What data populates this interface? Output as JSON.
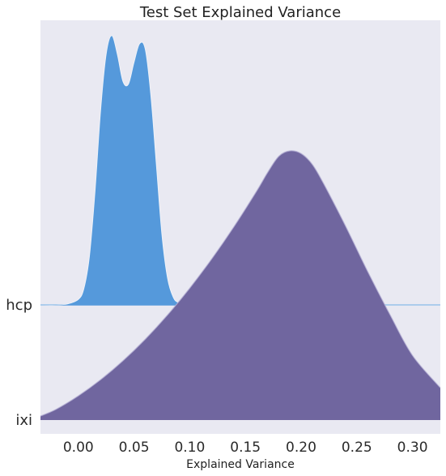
{
  "chart_data": {
    "type": "area",
    "title": "Test Set Explained Variance",
    "xlabel": "Explained Variance",
    "ylabel": "",
    "x_ticks": [
      "0.00",
      "0.05",
      "0.10",
      "0.15",
      "0.20",
      "0.25",
      "0.30"
    ],
    "x_tick_values": [
      0.0,
      0.05,
      0.1,
      0.15,
      0.2,
      0.25,
      0.3
    ],
    "xlim": [
      -0.034,
      0.325
    ],
    "categories": [
      "hcp",
      "ixi"
    ],
    "grid": false,
    "legend": "none",
    "series": [
      {
        "category": "hcp",
        "color": "#5599db",
        "x": [
          -0.034,
          -0.02,
          -0.01,
          0.0,
          0.005,
          0.01,
          0.015,
          0.02,
          0.025,
          0.03,
          0.035,
          0.04,
          0.045,
          0.05,
          0.055,
          0.06,
          0.065,
          0.07,
          0.075,
          0.08,
          0.085,
          0.09,
          0.1,
          0.12,
          0.325
        ],
        "density": [
          0.0,
          0.0,
          0.003,
          0.02,
          0.06,
          0.18,
          0.42,
          0.72,
          0.93,
          1.0,
          0.93,
          0.83,
          0.82,
          0.9,
          0.97,
          0.95,
          0.78,
          0.52,
          0.26,
          0.1,
          0.03,
          0.008,
          0.001,
          0.0,
          0.0
        ]
      },
      {
        "category": "ixi",
        "color": "#70669f",
        "x": [
          -0.034,
          -0.02,
          0.0,
          0.02,
          0.04,
          0.06,
          0.08,
          0.1,
          0.12,
          0.14,
          0.16,
          0.17,
          0.18,
          0.19,
          0.2,
          0.21,
          0.22,
          0.24,
          0.26,
          0.28,
          0.3,
          0.325
        ],
        "density": [
          0.015,
          0.04,
          0.09,
          0.15,
          0.22,
          0.3,
          0.39,
          0.49,
          0.6,
          0.72,
          0.85,
          0.92,
          0.98,
          1.0,
          0.99,
          0.95,
          0.88,
          0.72,
          0.55,
          0.39,
          0.24,
          0.12
        ]
      }
    ],
    "colors": {
      "background": "#e9e9f2",
      "hcp_line": "#5599db",
      "ixi_outline": "#b6b1d6"
    }
  }
}
